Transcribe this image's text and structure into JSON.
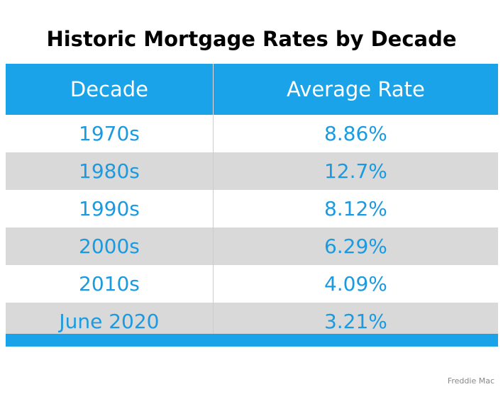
{
  "title": "Historic Mortgage Rates by Decade",
  "table": {
    "header": [
      "Decade",
      "Average Rate"
    ],
    "rows": [
      [
        "1970s",
        "8.86%"
      ],
      [
        "1980s",
        "12.7%"
      ],
      [
        "1990s",
        "8.12%"
      ],
      [
        "2000s",
        "6.29%"
      ],
      [
        "2010s",
        "4.09%"
      ],
      [
        "June 2020",
        "3.21%"
      ]
    ]
  },
  "source": "Freddie Mac"
}
